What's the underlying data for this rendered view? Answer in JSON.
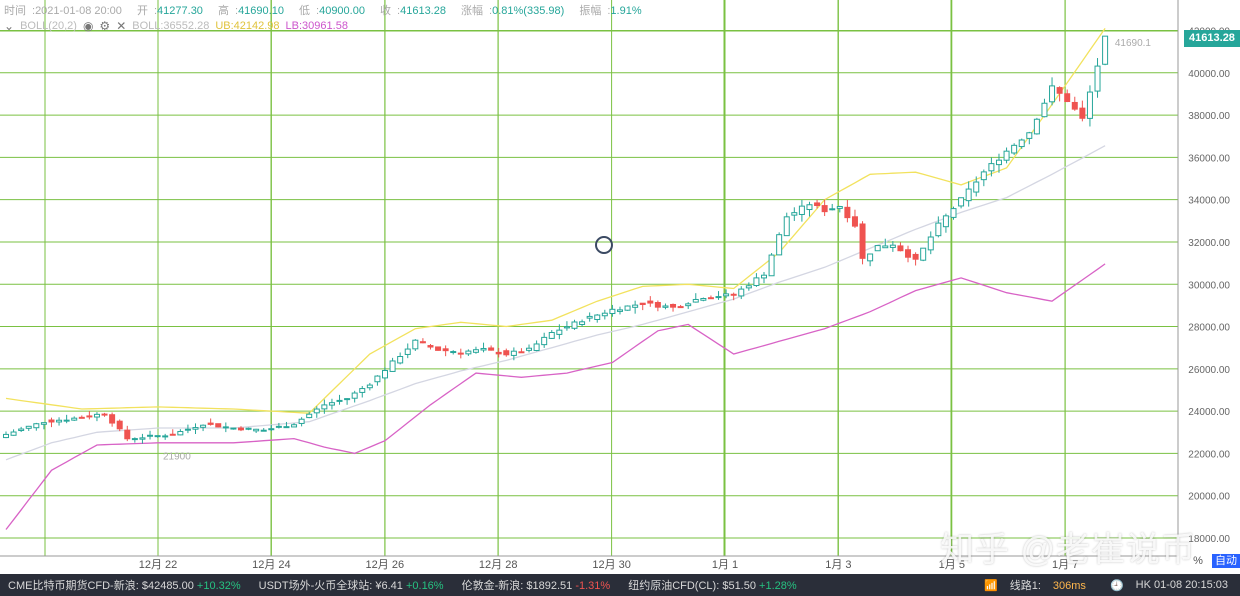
{
  "info": {
    "time_label": "时间",
    "time": "2021-01-08 20:00",
    "open_label": "开",
    "open": "41277.30",
    "high_label": "高",
    "high": "41690.10",
    "low_label": "低",
    "low": "40900.00",
    "close_label": "收",
    "close": "41613.28",
    "chg_label": "涨幅",
    "chg": "0.81%(335.98)",
    "amp_label": "振幅",
    "amp": "1.91%"
  },
  "boll": {
    "label": "BOLL(20,2)",
    "boll_value": "BOLL:36552.28",
    "ub_value": "UB:42142.98",
    "lb_value": "LB:30961.58",
    "toggle_icon": "chevron-down-icon",
    "eye_icon": "eye-icon",
    "gear_icon": "gear-icon",
    "close_icon": "close-icon"
  },
  "price_tag": "41613.28",
  "watermark": "知乎 @老崔说币",
  "corner": {
    "pct": "%",
    "auto": "自动"
  },
  "status": {
    "items": [
      {
        "name": "CME比特币期货CFD-新浪:",
        "value": "$42485.00",
        "change": "+10.32%",
        "dir": "up"
      },
      {
        "name": "USDT场外-火币全球站:",
        "value": "¥6.41",
        "change": "+0.16%",
        "dir": "up"
      },
      {
        "name": "伦敦金-新浪:",
        "value": "$1892.51",
        "change": "-1.31%",
        "dir": "down"
      },
      {
        "name": "纽约原油CFD(CL):",
        "value": "$51.50",
        "change": "+1.28%",
        "dir": "up"
      }
    ],
    "wifi_icon": "wifi-icon",
    "line_label": "线路1:",
    "latency": "306ms",
    "clock_icon": "clock-icon",
    "clock": "HK 01-08 20:15:03"
  },
  "chart_data": {
    "type": "candlestick",
    "title": "",
    "ylim": [
      18000,
      42500
    ],
    "yticks": [
      18000,
      20000,
      22000,
      24000,
      26000,
      28000,
      30000,
      32000,
      34000,
      36000,
      38000,
      40000,
      42000
    ],
    "x_labels": [
      "12月 22",
      "12月 24",
      "12月 26",
      "12月 28",
      "12月 30",
      "1月 1",
      "1月 3",
      "1月 5",
      "1月 7"
    ],
    "candles_per_day": 6,
    "annotations": [
      {
        "text": "41690.1",
        "value": 41690.1
      },
      {
        "text": "21900",
        "value": 21900
      }
    ],
    "close_anchors": [
      [
        0,
        22900
      ],
      [
        5,
        23500
      ],
      [
        10,
        23700
      ],
      [
        13,
        23900
      ],
      [
        16,
        22700
      ],
      [
        19,
        22800
      ],
      [
        22,
        22900
      ],
      [
        26,
        23400
      ],
      [
        30,
        23200
      ],
      [
        34,
        23100
      ],
      [
        38,
        23400
      ],
      [
        42,
        24300
      ],
      [
        45,
        24600
      ],
      [
        48,
        25300
      ],
      [
        51,
        26300
      ],
      [
        54,
        27300
      ],
      [
        57,
        26900
      ],
      [
        60,
        26800
      ],
      [
        63,
        26900
      ],
      [
        66,
        26700
      ],
      [
        69,
        26900
      ],
      [
        72,
        27700
      ],
      [
        76,
        28300
      ],
      [
        80,
        28800
      ],
      [
        84,
        29100
      ],
      [
        88,
        28900
      ],
      [
        92,
        29400
      ],
      [
        96,
        29500
      ],
      [
        100,
        30500
      ],
      [
        103,
        33200
      ],
      [
        106,
        33800
      ],
      [
        108,
        33500
      ],
      [
        110,
        33700
      ],
      [
        112,
        32800
      ],
      [
        113,
        31200
      ],
      [
        115,
        31800
      ],
      [
        117,
        31900
      ],
      [
        120,
        31100
      ],
      [
        123,
        32800
      ],
      [
        126,
        34000
      ],
      [
        129,
        35300
      ],
      [
        132,
        36300
      ],
      [
        135,
        37200
      ],
      [
        138,
        39300
      ],
      [
        140,
        38700
      ],
      [
        142,
        37800
      ],
      [
        145,
        41613
      ]
    ],
    "ub_anchors": [
      [
        0,
        24600
      ],
      [
        10,
        24100
      ],
      [
        20,
        24200
      ],
      [
        30,
        24100
      ],
      [
        40,
        23900
      ],
      [
        48,
        26700
      ],
      [
        54,
        27900
      ],
      [
        60,
        28200
      ],
      [
        66,
        28000
      ],
      [
        72,
        28300
      ],
      [
        78,
        29200
      ],
      [
        84,
        29900
      ],
      [
        90,
        30000
      ],
      [
        96,
        29800
      ],
      [
        102,
        31500
      ],
      [
        108,
        34000
      ],
      [
        114,
        35200
      ],
      [
        120,
        35300
      ],
      [
        126,
        34700
      ],
      [
        132,
        35500
      ],
      [
        138,
        38500
      ],
      [
        145,
        42100
      ]
    ],
    "mid_anchors": [
      [
        0,
        21700
      ],
      [
        6,
        22500
      ],
      [
        12,
        23000
      ],
      [
        20,
        23200
      ],
      [
        30,
        23200
      ],
      [
        40,
        23500
      ],
      [
        48,
        24500
      ],
      [
        54,
        25300
      ],
      [
        60,
        25900
      ],
      [
        66,
        26400
      ],
      [
        72,
        27000
      ],
      [
        78,
        27600
      ],
      [
        84,
        28100
      ],
      [
        90,
        28700
      ],
      [
        96,
        29300
      ],
      [
        102,
        30100
      ],
      [
        108,
        30800
      ],
      [
        114,
        31700
      ],
      [
        120,
        32600
      ],
      [
        126,
        33400
      ],
      [
        132,
        34100
      ],
      [
        138,
        35200
      ],
      [
        145,
        36550
      ]
    ],
    "lb_anchors": [
      [
        0,
        18400
      ],
      [
        6,
        21200
      ],
      [
        12,
        22400
      ],
      [
        20,
        22500
      ],
      [
        30,
        22500
      ],
      [
        38,
        22700
      ],
      [
        42,
        22300
      ],
      [
        46,
        22000
      ],
      [
        50,
        22600
      ],
      [
        56,
        24300
      ],
      [
        62,
        25800
      ],
      [
        68,
        25600
      ],
      [
        74,
        25800
      ],
      [
        80,
        26300
      ],
      [
        86,
        27800
      ],
      [
        90,
        28100
      ],
      [
        96,
        26700
      ],
      [
        102,
        27300
      ],
      [
        108,
        27900
      ],
      [
        114,
        28700
      ],
      [
        120,
        29700
      ],
      [
        126,
        30300
      ],
      [
        132,
        29600
      ],
      [
        138,
        29200
      ],
      [
        145,
        30960
      ]
    ],
    "colors": {
      "up": "#26a69a",
      "down": "#ef5350",
      "grid": "#7ac142",
      "ub": "#f2e25e",
      "mid": "#d4d6e2",
      "lb": "#d863c6",
      "axis_text": "#666666"
    }
  }
}
